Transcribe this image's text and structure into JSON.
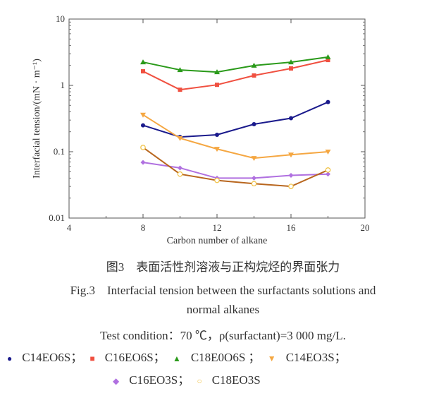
{
  "chart_data": {
    "type": "line",
    "xlabel": "Carbon number of alkane",
    "ylabel": "Interfacial tension/(mN · m⁻¹)",
    "xlim": [
      4,
      20
    ],
    "ylim": [
      0.01,
      10
    ],
    "yscale": "log",
    "xticks": [
      "4",
      "8",
      "12",
      "16",
      "20"
    ],
    "yticks": [
      "10",
      "1",
      "0.1",
      "0.01"
    ],
    "x": [
      8,
      10,
      12,
      14,
      16,
      18
    ],
    "series": [
      {
        "name": "C14EO6S",
        "marker": "circle",
        "color": "#1a1a8c",
        "values": [
          0.25,
          0.167,
          0.18,
          0.26,
          0.32,
          0.56
        ]
      },
      {
        "name": "C16EO6S",
        "marker": "square",
        "color": "#f05040",
        "values": [
          1.63,
          0.86,
          1.02,
          1.41,
          1.8,
          2.41
        ]
      },
      {
        "name": "C18E0O6S",
        "marker": "triangle-up",
        "color": "#2a9a1a",
        "values": [
          2.24,
          1.71,
          1.59,
          1.99,
          2.24,
          2.67
        ]
      },
      {
        "name": "C14EO3S",
        "marker": "triangle-down",
        "color": "#f5a742",
        "values": [
          0.36,
          0.16,
          0.11,
          0.08,
          0.09,
          0.1
        ]
      },
      {
        "name": "C16EO3S",
        "marker": "diamond",
        "color": "#b070e0",
        "values": [
          0.069,
          0.057,
          0.04,
          0.04,
          0.044,
          0.046
        ]
      },
      {
        "name": "C18EO3S",
        "marker": "open-circle",
        "color": "#b8661e",
        "marker_color": "#f0c040",
        "values": [
          0.116,
          0.046,
          0.037,
          0.033,
          0.03,
          0.053
        ]
      }
    ]
  },
  "caption": {
    "cn": "图3　表面活性剂溶液与正构烷烃的界面张力",
    "en1": "Fig.3　Interfacial tension between the surfactants solutions and",
    "en2": "normal alkanes",
    "cond": "Test condition：70 ℃，ρ(surfactant)=3 000 mg/L."
  },
  "legend": [
    "C14EO6S；",
    "C16EO6S；",
    "C18E0O6S ；",
    "C14EO3S；",
    "C16EO3S；",
    "C18EO3S"
  ]
}
